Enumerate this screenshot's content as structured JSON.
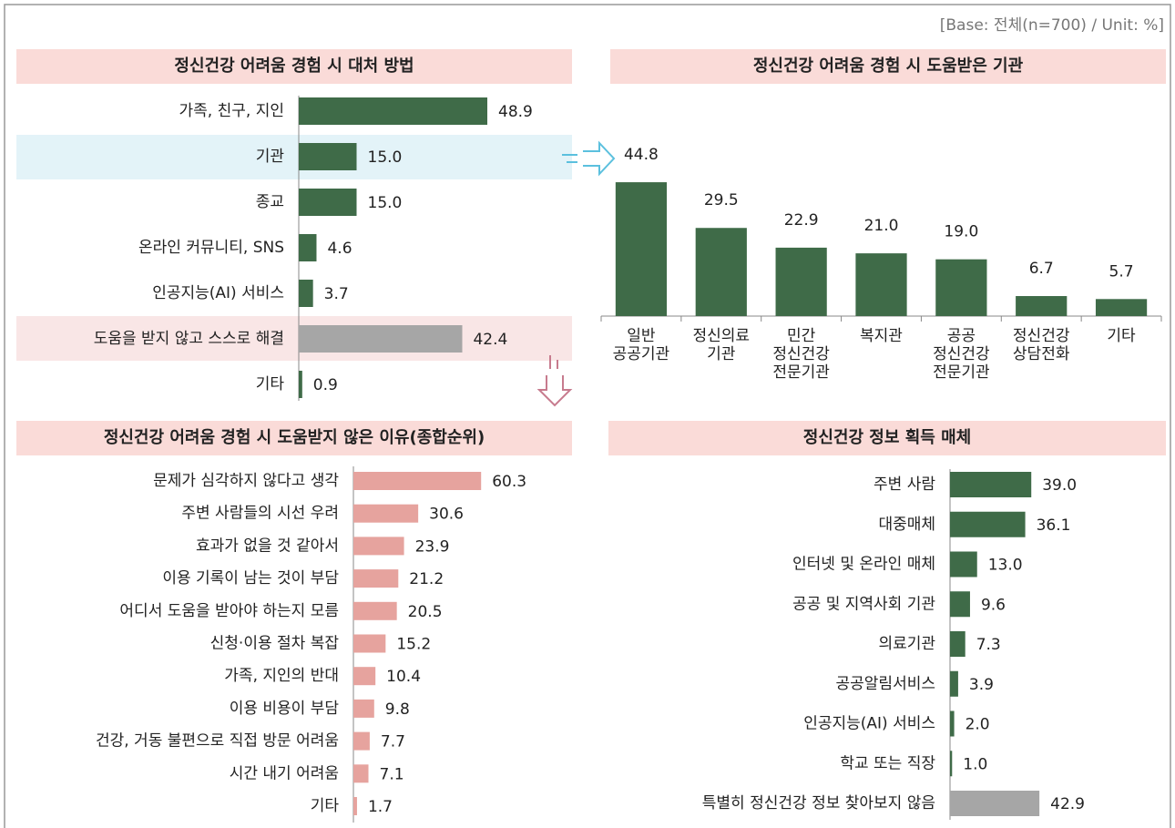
{
  "note": "[Base: 전체(n=700) / Unit: %]",
  "chart_data": [
    {
      "type": "hbar",
      "title": "정신건강 어려움 경험 시 대처 방법",
      "categories": [
        "가족, 친구, 지인",
        "기관",
        "종교",
        "온라인 커뮤니티, SNS",
        "인공지능(AI) 서비스",
        "도움을 받지 않고 스스로 해결",
        "기타"
      ],
      "values": [
        48.9,
        15.0,
        15.0,
        4.6,
        3.7,
        42.4,
        0.9
      ],
      "value_labels": [
        "48.9",
        "15.0",
        "15.0",
        "4.6",
        "3.7",
        "42.4",
        "0.9"
      ],
      "colors": [
        "#3f6b48",
        "#3f6b48",
        "#3f6b48",
        "#3f6b48",
        "#3f6b48",
        "#a6a6a6",
        "#3f6b48"
      ],
      "xlim": [
        0,
        60
      ]
    },
    {
      "type": "bar",
      "title": "정신건강 어려움 경험 시 도움받은 기관",
      "categories": [
        "일반\n공공기관",
        "정신의료\n기관",
        "민간\n정신건강\n전문기관",
        "복지관",
        "공공\n정신건강\n전문기관",
        "정신건강\n상담전화",
        "기타"
      ],
      "values": [
        44.8,
        29.5,
        22.9,
        21.0,
        19.0,
        6.7,
        5.7
      ],
      "value_labels": [
        "44.8",
        "29.5",
        "22.9",
        "21.0",
        "19.0",
        "6.7",
        "5.7"
      ],
      "color": "#3f6b48",
      "ylim": [
        0,
        50
      ]
    },
    {
      "type": "hbar",
      "title": "정신건강 어려움 경험 시 도움받지 않은 이유(종합순위)",
      "categories": [
        "문제가 심각하지 않다고 생각",
        "주변 사람들의 시선 우려",
        "효과가 없을 것 같아서",
        "이용 기록이 남는 것이 부담",
        "어디서 도움을 받아야 하는지 모름",
        "신청·이용 절차 복잡",
        "가족, 지인의 반대",
        "이용 비용이 부담",
        "건강, 거동 불편으로 직접 방문 어려움",
        "시간 내기 어려움",
        "기타"
      ],
      "values": [
        60.3,
        30.6,
        23.9,
        21.2,
        20.5,
        15.2,
        10.4,
        9.8,
        7.7,
        7.1,
        1.7
      ],
      "value_labels": [
        "60.3",
        "30.6",
        "23.9",
        "21.2",
        "20.5",
        "15.2",
        "10.4",
        "9.8",
        "7.7",
        "7.1",
        "1.7"
      ],
      "colors": [
        "#e6a39e",
        "#e6a39e",
        "#e6a39e",
        "#e6a39e",
        "#e6a39e",
        "#e6a39e",
        "#e6a39e",
        "#e6a39e",
        "#e6a39e",
        "#e6a39e",
        "#e6a39e"
      ],
      "xlim": [
        0,
        80
      ]
    },
    {
      "type": "hbar",
      "title": "정신건강 정보 획득 매체",
      "categories": [
        "주변 사람",
        "대중매체",
        "인터넷 및 온라인 매체",
        "공공 및 지역사회 기관",
        "의료기관",
        "공공알림서비스",
        "인공지능(AI) 서비스",
        "학교 또는 직장",
        "특별히 정신건강 정보 찾아보지 않음"
      ],
      "values": [
        39.0,
        36.1,
        13.0,
        9.6,
        7.3,
        3.9,
        2.0,
        1.0,
        42.9
      ],
      "value_labels": [
        "39.0",
        "36.1",
        "13.0",
        "9.6",
        "7.3",
        "3.9",
        "2.0",
        "1.0",
        "42.9"
      ],
      "colors": [
        "#3f6b48",
        "#3f6b48",
        "#3f6b48",
        "#3f6b48",
        "#3f6b48",
        "#3f6b48",
        "#3f6b48",
        "#3f6b48",
        "#a6a6a6"
      ],
      "xlim": [
        0,
        80
      ]
    }
  ]
}
